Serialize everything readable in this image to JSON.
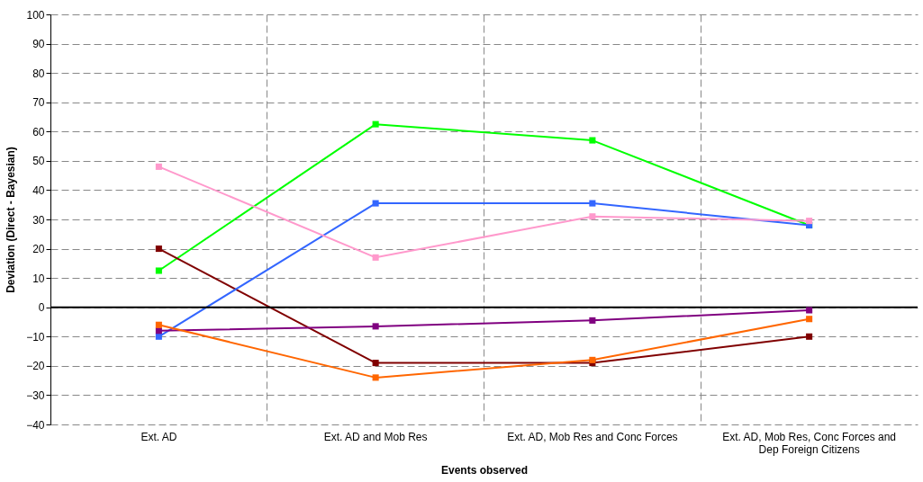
{
  "chart_data": {
    "type": "line",
    "xlabel": "Events observed",
    "ylabel": "Deviation (Direct - Bayesian)",
    "categories": [
      "Ext. AD",
      "Ext. AD and Mob Res",
      "Ext. AD, Mob Res and Conc Forces",
      "Ext. AD, Mob Res, Conc Forces and Dep Foreign Citizens"
    ],
    "series": [
      {
        "color": "#00ff00",
        "values": [
          12.5,
          62.5,
          57,
          28
        ]
      },
      {
        "color": "#800000",
        "values": [
          20,
          -19,
          -19,
          -10
        ]
      },
      {
        "color": "#3366ff",
        "values": [
          -10,
          35.5,
          35.5,
          28
        ]
      },
      {
        "color": "#ff99cc",
        "values": [
          48,
          17,
          31,
          29.5
        ]
      },
      {
        "color": "#800080",
        "values": [
          -8,
          -6.5,
          -4.5,
          -1
        ]
      },
      {
        "color": "#ff6600",
        "values": [
          -6,
          -24,
          -18,
          -4
        ]
      }
    ],
    "ylim": [
      -40,
      100
    ],
    "yticks": [
      -40,
      -30,
      -20,
      -10,
      0,
      10,
      20,
      30,
      40,
      50,
      60,
      70,
      80,
      90,
      100
    ],
    "grid": true,
    "marker": "square",
    "line_style": "solid",
    "ref_lines": [
      {
        "axis": "y",
        "value": 0,
        "color": "#000000"
      }
    ]
  }
}
